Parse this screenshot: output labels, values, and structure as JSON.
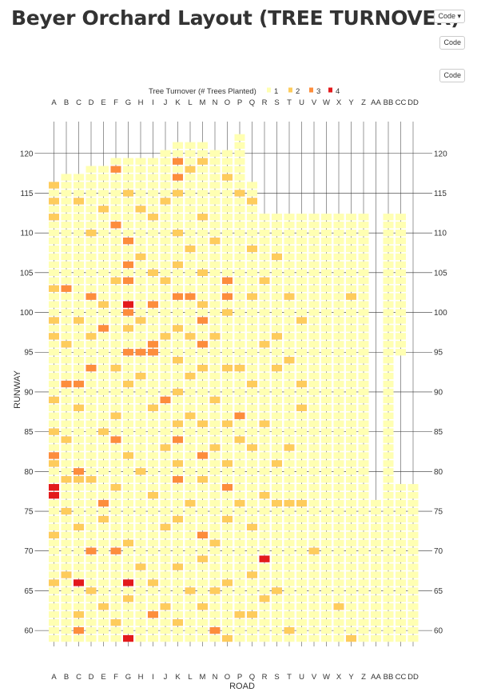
{
  "page": {
    "title": "Beyer Orchard Layout (TREE TURNOVER)",
    "code_buttons": [
      "Code ▾",
      "Code",
      "Code"
    ]
  },
  "colors": {
    "level1": "#ffffb2",
    "level2": "#fecc5c",
    "level3": "#fd8d3c",
    "level4": "#e31a1c",
    "grid": "#333333"
  },
  "chart_data": {
    "type": "heatmap",
    "title": "",
    "xlabel": "ROAD",
    "ylabel": "RUNWAY",
    "legend": {
      "title": "Tree Turnover (# Trees Planted)",
      "position": "top",
      "levels": [
        "1",
        "2",
        "3",
        "4"
      ]
    },
    "x_categories": [
      "A",
      "B",
      "C",
      "D",
      "E",
      "F",
      "G",
      "H",
      "I",
      "J",
      "K",
      "L",
      "M",
      "N",
      "O",
      "P",
      "Q",
      "R",
      "S",
      "T",
      "U",
      "V",
      "W",
      "X",
      "Y",
      "Z",
      "AA",
      "BB",
      "CC",
      "DD"
    ],
    "y_range": [
      58,
      124
    ],
    "y_ticks": [
      60,
      65,
      70,
      75,
      80,
      85,
      90,
      95,
      100,
      105,
      110,
      115,
      120
    ],
    "column_runway_extent": [
      [
        59,
        116
      ],
      [
        59,
        117
      ],
      [
        59,
        117
      ],
      [
        59,
        118
      ],
      [
        59,
        118
      ],
      [
        59,
        119
      ],
      [
        59,
        119
      ],
      [
        59,
        119
      ],
      [
        59,
        119
      ],
      [
        59,
        120
      ],
      [
        59,
        121
      ],
      [
        59,
        121
      ],
      [
        59,
        121
      ],
      [
        59,
        120
      ],
      [
        59,
        120
      ],
      [
        59,
        122
      ],
      [
        59,
        116
      ],
      [
        59,
        112
      ],
      [
        59,
        112
      ],
      [
        59,
        112
      ],
      [
        59,
        112
      ],
      [
        59,
        112
      ],
      [
        59,
        112
      ],
      [
        59,
        112
      ],
      [
        59,
        112
      ],
      [
        59,
        112
      ],
      [
        59,
        76
      ],
      [
        59,
        112
      ],
      [
        59,
        112
      ],
      [
        59,
        78
      ]
    ],
    "gap_cells": [
      {
        "x": "CC",
        "from": 79,
        "to": 94
      }
    ],
    "turnover_cells": [
      {
        "x": "A",
        "y": 78,
        "value": 4
      },
      {
        "x": "A",
        "y": 77,
        "value": 4
      },
      {
        "x": "C",
        "y": 66,
        "value": 4
      },
      {
        "x": "G",
        "y": 101,
        "value": 4
      },
      {
        "x": "G",
        "y": 66,
        "value": 4
      },
      {
        "x": "G",
        "y": 59,
        "value": 4
      },
      {
        "x": "R",
        "y": 69,
        "value": 4
      },
      {
        "x": "A",
        "y": 82,
        "value": 3
      },
      {
        "x": "B",
        "y": 103,
        "value": 3
      },
      {
        "x": "B",
        "y": 91,
        "value": 3
      },
      {
        "x": "C",
        "y": 91,
        "value": 3
      },
      {
        "x": "C",
        "y": 80,
        "value": 3
      },
      {
        "x": "C",
        "y": 60,
        "value": 3
      },
      {
        "x": "D",
        "y": 102,
        "value": 3
      },
      {
        "x": "D",
        "y": 93,
        "value": 3
      },
      {
        "x": "D",
        "y": 70,
        "value": 3
      },
      {
        "x": "E",
        "y": 98,
        "value": 3
      },
      {
        "x": "E",
        "y": 76,
        "value": 3
      },
      {
        "x": "F",
        "y": 118,
        "value": 3
      },
      {
        "x": "F",
        "y": 111,
        "value": 3
      },
      {
        "x": "F",
        "y": 84,
        "value": 3
      },
      {
        "x": "F",
        "y": 70,
        "value": 3
      },
      {
        "x": "G",
        "y": 109,
        "value": 3
      },
      {
        "x": "G",
        "y": 106,
        "value": 3
      },
      {
        "x": "G",
        "y": 104,
        "value": 3
      },
      {
        "x": "G",
        "y": 100,
        "value": 3
      },
      {
        "x": "G",
        "y": 95,
        "value": 3
      },
      {
        "x": "H",
        "y": 95,
        "value": 3
      },
      {
        "x": "I",
        "y": 101,
        "value": 3
      },
      {
        "x": "I",
        "y": 96,
        "value": 3
      },
      {
        "x": "I",
        "y": 95,
        "value": 3
      },
      {
        "x": "I",
        "y": 62,
        "value": 3
      },
      {
        "x": "J",
        "y": 89,
        "value": 3
      },
      {
        "x": "K",
        "y": 119,
        "value": 3
      },
      {
        "x": "K",
        "y": 117,
        "value": 3
      },
      {
        "x": "K",
        "y": 102,
        "value": 3
      },
      {
        "x": "K",
        "y": 84,
        "value": 3
      },
      {
        "x": "K",
        "y": 79,
        "value": 3
      },
      {
        "x": "L",
        "y": 102,
        "value": 3
      },
      {
        "x": "M",
        "y": 99,
        "value": 3
      },
      {
        "x": "M",
        "y": 96,
        "value": 3
      },
      {
        "x": "M",
        "y": 82,
        "value": 3
      },
      {
        "x": "M",
        "y": 72,
        "value": 3
      },
      {
        "x": "N",
        "y": 60,
        "value": 3
      },
      {
        "x": "O",
        "y": 104,
        "value": 3
      },
      {
        "x": "O",
        "y": 102,
        "value": 3
      },
      {
        "x": "O",
        "y": 78,
        "value": 3
      },
      {
        "x": "P",
        "y": 87,
        "value": 3
      },
      {
        "x": "A",
        "y": 116,
        "value": 2
      },
      {
        "x": "A",
        "y": 114,
        "value": 2
      },
      {
        "x": "A",
        "y": 112,
        "value": 2
      },
      {
        "x": "A",
        "y": 103,
        "value": 2
      },
      {
        "x": "A",
        "y": 99,
        "value": 2
      },
      {
        "x": "A",
        "y": 97,
        "value": 2
      },
      {
        "x": "A",
        "y": 89,
        "value": 2
      },
      {
        "x": "A",
        "y": 85,
        "value": 2
      },
      {
        "x": "A",
        "y": 81,
        "value": 2
      },
      {
        "x": "A",
        "y": 72,
        "value": 2
      },
      {
        "x": "A",
        "y": 66,
        "value": 2
      },
      {
        "x": "B",
        "y": 96,
        "value": 2
      },
      {
        "x": "B",
        "y": 84,
        "value": 2
      },
      {
        "x": "B",
        "y": 79,
        "value": 2
      },
      {
        "x": "B",
        "y": 75,
        "value": 2
      },
      {
        "x": "B",
        "y": 67,
        "value": 2
      },
      {
        "x": "C",
        "y": 114,
        "value": 2
      },
      {
        "x": "C",
        "y": 99,
        "value": 2
      },
      {
        "x": "C",
        "y": 88,
        "value": 2
      },
      {
        "x": "C",
        "y": 79,
        "value": 2
      },
      {
        "x": "C",
        "y": 73,
        "value": 2
      },
      {
        "x": "C",
        "y": 62,
        "value": 2
      },
      {
        "x": "D",
        "y": 110,
        "value": 2
      },
      {
        "x": "D",
        "y": 97,
        "value": 2
      },
      {
        "x": "D",
        "y": 79,
        "value": 2
      },
      {
        "x": "D",
        "y": 65,
        "value": 2
      },
      {
        "x": "E",
        "y": 113,
        "value": 2
      },
      {
        "x": "E",
        "y": 101,
        "value": 2
      },
      {
        "x": "E",
        "y": 85,
        "value": 2
      },
      {
        "x": "E",
        "y": 74,
        "value": 2
      },
      {
        "x": "E",
        "y": 63,
        "value": 2
      },
      {
        "x": "F",
        "y": 104,
        "value": 2
      },
      {
        "x": "F",
        "y": 93,
        "value": 2
      },
      {
        "x": "F",
        "y": 87,
        "value": 2
      },
      {
        "x": "F",
        "y": 78,
        "value": 2
      },
      {
        "x": "F",
        "y": 61,
        "value": 2
      },
      {
        "x": "G",
        "y": 115,
        "value": 2
      },
      {
        "x": "G",
        "y": 98,
        "value": 2
      },
      {
        "x": "G",
        "y": 91,
        "value": 2
      },
      {
        "x": "G",
        "y": 82,
        "value": 2
      },
      {
        "x": "G",
        "y": 71,
        "value": 2
      },
      {
        "x": "G",
        "y": 64,
        "value": 2
      },
      {
        "x": "H",
        "y": 113,
        "value": 2
      },
      {
        "x": "H",
        "y": 107,
        "value": 2
      },
      {
        "x": "H",
        "y": 99,
        "value": 2
      },
      {
        "x": "H",
        "y": 92,
        "value": 2
      },
      {
        "x": "H",
        "y": 80,
        "value": 2
      },
      {
        "x": "H",
        "y": 68,
        "value": 2
      },
      {
        "x": "I",
        "y": 112,
        "value": 2
      },
      {
        "x": "I",
        "y": 105,
        "value": 2
      },
      {
        "x": "I",
        "y": 88,
        "value": 2
      },
      {
        "x": "I",
        "y": 77,
        "value": 2
      },
      {
        "x": "I",
        "y": 66,
        "value": 2
      },
      {
        "x": "J",
        "y": 114,
        "value": 2
      },
      {
        "x": "J",
        "y": 104,
        "value": 2
      },
      {
        "x": "J",
        "y": 97,
        "value": 2
      },
      {
        "x": "J",
        "y": 83,
        "value": 2
      },
      {
        "x": "J",
        "y": 73,
        "value": 2
      },
      {
        "x": "J",
        "y": 63,
        "value": 2
      },
      {
        "x": "K",
        "y": 115,
        "value": 2
      },
      {
        "x": "K",
        "y": 110,
        "value": 2
      },
      {
        "x": "K",
        "y": 106,
        "value": 2
      },
      {
        "x": "K",
        "y": 98,
        "value": 2
      },
      {
        "x": "K",
        "y": 94,
        "value": 2
      },
      {
        "x": "K",
        "y": 90,
        "value": 2
      },
      {
        "x": "K",
        "y": 86,
        "value": 2
      },
      {
        "x": "K",
        "y": 81,
        "value": 2
      },
      {
        "x": "K",
        "y": 74,
        "value": 2
      },
      {
        "x": "K",
        "y": 68,
        "value": 2
      },
      {
        "x": "K",
        "y": 61,
        "value": 2
      },
      {
        "x": "L",
        "y": 118,
        "value": 2
      },
      {
        "x": "L",
        "y": 108,
        "value": 2
      },
      {
        "x": "L",
        "y": 97,
        "value": 2
      },
      {
        "x": "L",
        "y": 92,
        "value": 2
      },
      {
        "x": "L",
        "y": 87,
        "value": 2
      },
      {
        "x": "L",
        "y": 76,
        "value": 2
      },
      {
        "x": "L",
        "y": 65,
        "value": 2
      },
      {
        "x": "M",
        "y": 119,
        "value": 2
      },
      {
        "x": "M",
        "y": 112,
        "value": 2
      },
      {
        "x": "M",
        "y": 105,
        "value": 2
      },
      {
        "x": "M",
        "y": 101,
        "value": 2
      },
      {
        "x": "M",
        "y": 93,
        "value": 2
      },
      {
        "x": "M",
        "y": 86,
        "value": 2
      },
      {
        "x": "M",
        "y": 79,
        "value": 2
      },
      {
        "x": "M",
        "y": 69,
        "value": 2
      },
      {
        "x": "M",
        "y": 63,
        "value": 2
      },
      {
        "x": "N",
        "y": 109,
        "value": 2
      },
      {
        "x": "N",
        "y": 97,
        "value": 2
      },
      {
        "x": "N",
        "y": 89,
        "value": 2
      },
      {
        "x": "N",
        "y": 83,
        "value": 2
      },
      {
        "x": "N",
        "y": 71,
        "value": 2
      },
      {
        "x": "N",
        "y": 65,
        "value": 2
      },
      {
        "x": "O",
        "y": 117,
        "value": 2
      },
      {
        "x": "O",
        "y": 100,
        "value": 2
      },
      {
        "x": "O",
        "y": 93,
        "value": 2
      },
      {
        "x": "O",
        "y": 86,
        "value": 2
      },
      {
        "x": "O",
        "y": 81,
        "value": 2
      },
      {
        "x": "O",
        "y": 74,
        "value": 2
      },
      {
        "x": "O",
        "y": 66,
        "value": 2
      },
      {
        "x": "O",
        "y": 59,
        "value": 2
      },
      {
        "x": "P",
        "y": 115,
        "value": 2
      },
      {
        "x": "P",
        "y": 93,
        "value": 2
      },
      {
        "x": "P",
        "y": 84,
        "value": 2
      },
      {
        "x": "P",
        "y": 76,
        "value": 2
      },
      {
        "x": "P",
        "y": 62,
        "value": 2
      },
      {
        "x": "Q",
        "y": 114,
        "value": 2
      },
      {
        "x": "Q",
        "y": 108,
        "value": 2
      },
      {
        "x": "Q",
        "y": 102,
        "value": 2
      },
      {
        "x": "Q",
        "y": 91,
        "value": 2
      },
      {
        "x": "Q",
        "y": 83,
        "value": 2
      },
      {
        "x": "Q",
        "y": 73,
        "value": 2
      },
      {
        "x": "Q",
        "y": 67,
        "value": 2
      },
      {
        "x": "Q",
        "y": 62,
        "value": 2
      },
      {
        "x": "R",
        "y": 104,
        "value": 2
      },
      {
        "x": "R",
        "y": 96,
        "value": 2
      },
      {
        "x": "R",
        "y": 86,
        "value": 2
      },
      {
        "x": "R",
        "y": 77,
        "value": 2
      },
      {
        "x": "R",
        "y": 64,
        "value": 2
      },
      {
        "x": "S",
        "y": 107,
        "value": 2
      },
      {
        "x": "S",
        "y": 97,
        "value": 2
      },
      {
        "x": "S",
        "y": 93,
        "value": 2
      },
      {
        "x": "S",
        "y": 81,
        "value": 2
      },
      {
        "x": "S",
        "y": 76,
        "value": 2
      },
      {
        "x": "S",
        "y": 65,
        "value": 2
      },
      {
        "x": "T",
        "y": 102,
        "value": 2
      },
      {
        "x": "T",
        "y": 94,
        "value": 2
      },
      {
        "x": "T",
        "y": 83,
        "value": 2
      },
      {
        "x": "T",
        "y": 76,
        "value": 2
      },
      {
        "x": "T",
        "y": 60,
        "value": 2
      },
      {
        "x": "U",
        "y": 99,
        "value": 2
      },
      {
        "x": "U",
        "y": 91,
        "value": 2
      },
      {
        "x": "U",
        "y": 88,
        "value": 2
      },
      {
        "x": "U",
        "y": 76,
        "value": 2
      },
      {
        "x": "V",
        "y": 70,
        "value": 2
      },
      {
        "x": "X",
        "y": 63,
        "value": 2
      },
      {
        "x": "Y",
        "y": 102,
        "value": 2
      },
      {
        "x": "Y",
        "y": 59,
        "value": 2
      }
    ]
  }
}
